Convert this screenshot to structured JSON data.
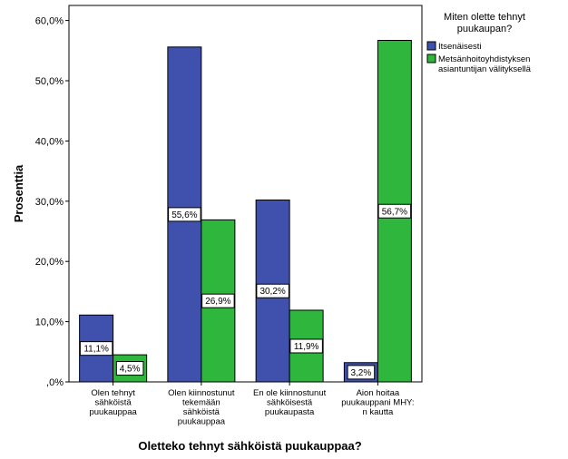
{
  "chart_data": {
    "type": "bar",
    "title": "",
    "xlabel": "Oletteko tehnyt sähköistä puukauppaa?",
    "ylabel": "Prosenttia",
    "ylim": [
      0,
      62.5
    ],
    "yticks": [
      {
        "value": 0,
        "label": ",0%"
      },
      {
        "value": 10,
        "label": "10,0%"
      },
      {
        "value": 20,
        "label": "20,0%"
      },
      {
        "value": 30,
        "label": "30,0%"
      },
      {
        "value": 40,
        "label": "40,0%"
      },
      {
        "value": 50,
        "label": "50,0%"
      },
      {
        "value": 60,
        "label": "60,0%"
      }
    ],
    "grid": false,
    "legend_position": "right",
    "legend_title": [
      "Miten olette tehnyt",
      "puukaupan?"
    ],
    "categories": [
      [
        "Olen tehnyt",
        "sähköistä",
        "puukauppaa"
      ],
      [
        "Olen kiinnostunut",
        "tekemään",
        "sähköistä",
        "puukauppaa"
      ],
      [
        "En ole kiinnostunut",
        "sähköisestä",
        "puukaupasta"
      ],
      [
        "Aion hoitaa",
        "puukauppani MHY:",
        "n kautta"
      ]
    ],
    "series": [
      {
        "name": [
          "Itsenäisesti"
        ],
        "color": "#3f51ad",
        "values": [
          11.1,
          55.6,
          30.2,
          3.2
        ],
        "labels": [
          "11,1%",
          "55,6%",
          "30,2%",
          "3,2%"
        ]
      },
      {
        "name": [
          "Metsänhoitoyhdistyksen",
          "asiantuntijan välityksellä"
        ],
        "color": "#2eb63d",
        "values": [
          4.5,
          26.9,
          11.9,
          56.7
        ],
        "labels": [
          "4,5%",
          "26,9%",
          "11,9%",
          "56,7%"
        ]
      }
    ]
  }
}
